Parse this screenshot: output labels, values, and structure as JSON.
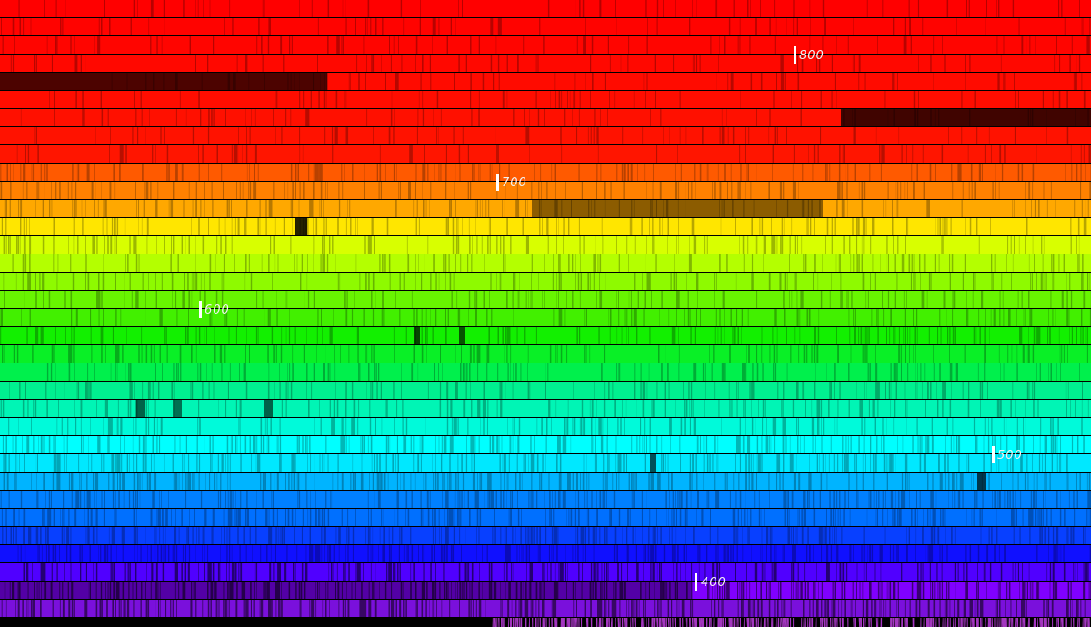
{
  "image": {
    "subject": "solar spectrum",
    "rows": 34,
    "bands": [
      {
        "count": 9,
        "from": "#ff0000",
        "to": "#ff1500"
      },
      {
        "count": 3,
        "from": "#ff5a00",
        "to": "#ffa800"
      },
      {
        "count": 2,
        "from": "#ffe600",
        "to": "#d8ff00"
      },
      {
        "count": 4,
        "from": "#b4ff00",
        "to": "#42f000"
      },
      {
        "count": 3,
        "from": "#12f000",
        "to": "#00f04c"
      },
      {
        "count": 4,
        "from": "#00f090",
        "to": "#00ffff"
      },
      {
        "count": 3,
        "from": "#00e8ff",
        "to": "#0080ff"
      },
      {
        "count": 3,
        "from": "#0070ff",
        "to": "#1010ff"
      },
      {
        "count": 2,
        "from": "#5000ff",
        "to": "#8000ff"
      },
      {
        "count": 1,
        "from": "#7a10dc",
        "to": "#7a10dc"
      }
    ],
    "bottom_row_color": "#c040e0",
    "marker_color": "#ffffff"
  },
  "markers": [
    {
      "label": "800",
      "row": 3
    },
    {
      "label": "700",
      "row": 10
    },
    {
      "label": "600",
      "row": 17
    },
    {
      "label": "500",
      "row": 25
    },
    {
      "label": "400",
      "row": 32
    }
  ]
}
